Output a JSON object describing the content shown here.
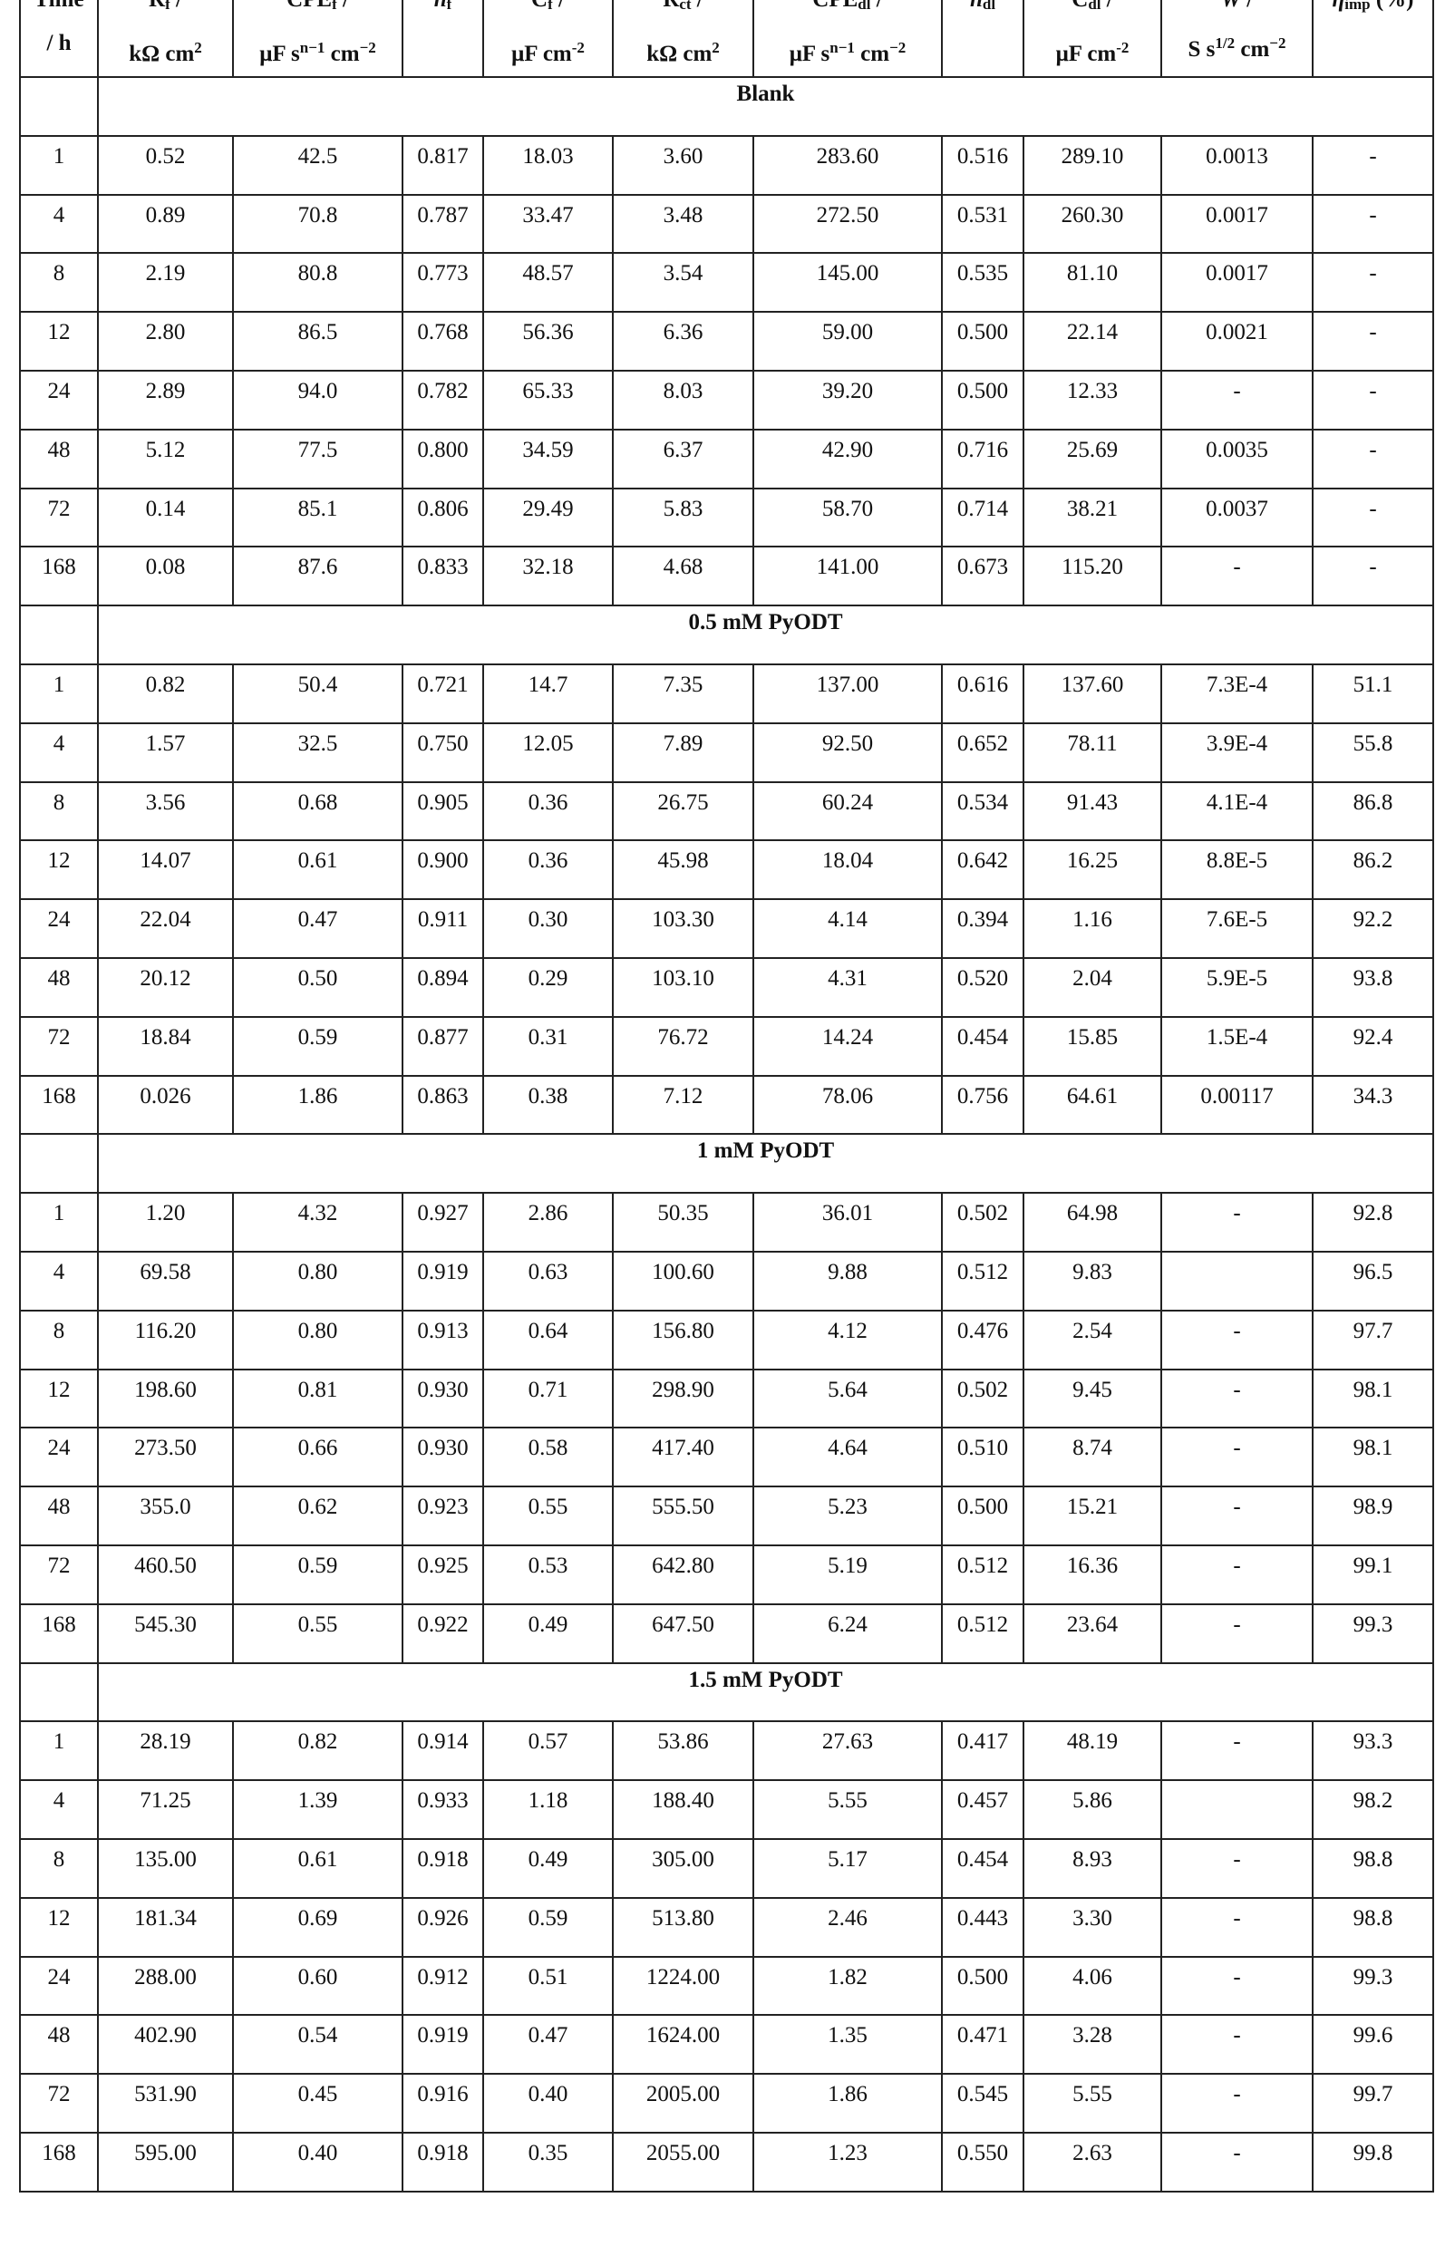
{
  "table": {
    "headers": [
      {
        "line1": [
          {
            "t": "Time"
          }
        ],
        "line2": [
          {
            "t": "/ h"
          }
        ]
      },
      {
        "line1": [
          {
            "t": "R"
          },
          {
            "sub": "f"
          },
          {
            "t": " /"
          }
        ],
        "line2": [
          {
            "t": "kΩ cm"
          },
          {
            "sup": "2"
          }
        ]
      },
      {
        "line1": [
          {
            "t": "CPE"
          },
          {
            "sub": "f"
          },
          {
            "t": " /"
          }
        ],
        "line2": [
          {
            "t": "μF s"
          },
          {
            "sup": "n−1"
          },
          {
            "t": " cm"
          },
          {
            "sup": "−2"
          }
        ]
      },
      {
        "line1": [
          {
            "i": "n"
          },
          {
            "sub": "f"
          }
        ],
        "line2": []
      },
      {
        "line1": [
          {
            "t": "C"
          },
          {
            "sub": "f"
          },
          {
            "t": " /"
          }
        ],
        "line2": [
          {
            "t": "μF cm"
          },
          {
            "sup": "-2"
          }
        ]
      },
      {
        "line1": [
          {
            "t": "R"
          },
          {
            "sub": "ct"
          },
          {
            "t": " /"
          }
        ],
        "line2": [
          {
            "t": "kΩ cm"
          },
          {
            "sup": "2"
          }
        ]
      },
      {
        "line1": [
          {
            "t": "CPE"
          },
          {
            "sub": "dl"
          },
          {
            "t": " /"
          }
        ],
        "line2": [
          {
            "t": "μF s"
          },
          {
            "sup": "n−1"
          },
          {
            "t": " cm"
          },
          {
            "sup": "−2"
          }
        ]
      },
      {
        "line1": [
          {
            "i": "n"
          },
          {
            "sub": "dl"
          }
        ],
        "line2": []
      },
      {
        "line1": [
          {
            "t": "C"
          },
          {
            "sub": "dl"
          },
          {
            "t": " /"
          }
        ],
        "line2": [
          {
            "t": "μF cm"
          },
          {
            "sup": "-2"
          }
        ]
      },
      {
        "line1": [
          {
            "i": "W"
          },
          {
            "t": " /"
          }
        ],
        "line2": [
          {
            "t": "S s"
          },
          {
            "sup": "1/2"
          },
          {
            "t": " cm"
          },
          {
            "sup": "−2"
          }
        ]
      },
      {
        "line1": [
          {
            "i": "η"
          },
          {
            "sub": "imp"
          },
          {
            "t": " (%)"
          }
        ],
        "line2": []
      }
    ],
    "groups": [
      {
        "label": "Blank",
        "rows": [
          [
            "1",
            "0.52",
            "42.5",
            "0.817",
            "18.03",
            "3.60",
            "283.60",
            "0.516",
            "289.10",
            "0.0013",
            "-"
          ],
          [
            "4",
            "0.89",
            "70.8",
            "0.787",
            "33.47",
            "3.48",
            "272.50",
            "0.531",
            "260.30",
            "0.0017",
            "-"
          ],
          [
            "8",
            "2.19",
            "80.8",
            "0.773",
            "48.57",
            "3.54",
            "145.00",
            "0.535",
            "81.10",
            "0.0017",
            "-"
          ],
          [
            "12",
            "2.80",
            "86.5",
            "0.768",
            "56.36",
            "6.36",
            "59.00",
            "0.500",
            "22.14",
            "0.0021",
            "-"
          ],
          [
            "24",
            "2.89",
            "94.0",
            "0.782",
            "65.33",
            "8.03",
            "39.20",
            "0.500",
            "12.33",
            "-",
            "-"
          ],
          [
            "48",
            "5.12",
            "77.5",
            "0.800",
            "34.59",
            "6.37",
            "42.90",
            "0.716",
            "25.69",
            "0.0035",
            "-"
          ],
          [
            "72",
            "0.14",
            "85.1",
            "0.806",
            "29.49",
            "5.83",
            "58.70",
            "0.714",
            "38.21",
            "0.0037",
            "-"
          ],
          [
            "168",
            "0.08",
            "87.6",
            "0.833",
            "32.18",
            "4.68",
            "141.00",
            "0.673",
            "115.20",
            "-",
            "-"
          ]
        ]
      },
      {
        "label": "0.5 mM PyODT",
        "rows": [
          [
            "1",
            "0.82",
            "50.4",
            "0.721",
            "14.7",
            "7.35",
            "137.00",
            "0.616",
            "137.60",
            "7.3E-4",
            "51.1"
          ],
          [
            "4",
            "1.57",
            "32.5",
            "0.750",
            "12.05",
            "7.89",
            "92.50",
            "0.652",
            "78.11",
            "3.9E-4",
            "55.8"
          ],
          [
            "8",
            "3.56",
            "0.68",
            "0.905",
            "0.36",
            "26.75",
            "60.24",
            "0.534",
            "91.43",
            "4.1E-4",
            "86.8"
          ],
          [
            "12",
            "14.07",
            "0.61",
            "0.900",
            "0.36",
            "45.98",
            "18.04",
            "0.642",
            "16.25",
            "8.8E-5",
            "86.2"
          ],
          [
            "24",
            "22.04",
            "0.47",
            "0.911",
            "0.30",
            "103.30",
            "4.14",
            "0.394",
            "1.16",
            "7.6E-5",
            "92.2"
          ],
          [
            "48",
            "20.12",
            "0.50",
            "0.894",
            "0.29",
            "103.10",
            "4.31",
            "0.520",
            "2.04",
            "5.9E-5",
            "93.8"
          ],
          [
            "72",
            "18.84",
            "0.59",
            "0.877",
            "0.31",
            "76.72",
            "14.24",
            "0.454",
            "15.85",
            "1.5E-4",
            "92.4"
          ],
          [
            "168",
            "0.026",
            "1.86",
            "0.863",
            "0.38",
            "7.12",
            "78.06",
            "0.756",
            "64.61",
            "0.00117",
            "34.3"
          ]
        ]
      },
      {
        "label": "1 mM PyODT",
        "rows": [
          [
            "1",
            "1.20",
            "4.32",
            "0.927",
            "2.86",
            "50.35",
            "36.01",
            "0.502",
            "64.98",
            "-",
            "92.8"
          ],
          [
            "4",
            "69.58",
            "0.80",
            "0.919",
            "0.63",
            "100.60",
            "9.88",
            "0.512",
            "9.83",
            "",
            "96.5"
          ],
          [
            "8",
            "116.20",
            "0.80",
            "0.913",
            "0.64",
            "156.80",
            "4.12",
            "0.476",
            "2.54",
            "-",
            "97.7"
          ],
          [
            "12",
            "198.60",
            "0.81",
            "0.930",
            "0.71",
            "298.90",
            "5.64",
            "0.502",
            "9.45",
            "-",
            "98.1"
          ],
          [
            "24",
            "273.50",
            "0.66",
            "0.930",
            "0.58",
            "417.40",
            "4.64",
            "0.510",
            "8.74",
            "-",
            "98.1"
          ],
          [
            "48",
            "355.0",
            "0.62",
            "0.923",
            "0.55",
            "555.50",
            "5.23",
            "0.500",
            "15.21",
            "-",
            "98.9"
          ],
          [
            "72",
            "460.50",
            "0.59",
            "0.925",
            "0.53",
            "642.80",
            "5.19",
            "0.512",
            "16.36",
            "-",
            "99.1"
          ],
          [
            "168",
            "545.30",
            "0.55",
            "0.922",
            "0.49",
            "647.50",
            "6.24",
            "0.512",
            "23.64",
            "-",
            "99.3"
          ]
        ]
      },
      {
        "label": "1.5 mM PyODT",
        "rows": [
          [
            "1",
            "28.19",
            "0.82",
            "0.914",
            "0.57",
            "53.86",
            "27.63",
            "0.417",
            "48.19",
            "-",
            "93.3"
          ],
          [
            "4",
            "71.25",
            "1.39",
            "0.933",
            "1.18",
            "188.40",
            "5.55",
            "0.457",
            "5.86",
            "",
            "98.2"
          ],
          [
            "8",
            "135.00",
            "0.61",
            "0.918",
            "0.49",
            "305.00",
            "5.17",
            "0.454",
            "8.93",
            "-",
            "98.8"
          ],
          [
            "12",
            "181.34",
            "0.69",
            "0.926",
            "0.59",
            "513.80",
            "2.46",
            "0.443",
            "3.30",
            "-",
            "98.8"
          ],
          [
            "24",
            "288.00",
            "0.60",
            "0.912",
            "0.51",
            "1224.00",
            "1.82",
            "0.500",
            "4.06",
            "-",
            "99.3"
          ],
          [
            "48",
            "402.90",
            "0.54",
            "0.919",
            "0.47",
            "1624.00",
            "1.35",
            "0.471",
            "3.28",
            "-",
            "99.6"
          ],
          [
            "72",
            "531.90",
            "0.45",
            "0.916",
            "0.40",
            "2005.00",
            "1.86",
            "0.545",
            "5.55",
            "-",
            "99.7"
          ],
          [
            "168",
            "595.00",
            "0.40",
            "0.918",
            "0.35",
            "2055.00",
            "1.23",
            "0.550",
            "2.63",
            "-",
            "99.8"
          ]
        ]
      }
    ]
  }
}
